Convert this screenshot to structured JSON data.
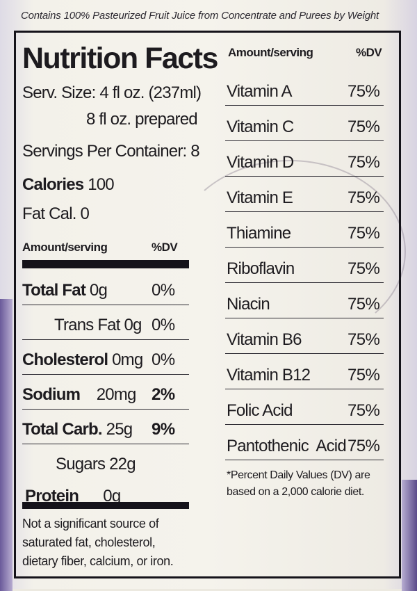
{
  "header": "Contains 100% Pasteurized Fruit Juice from Concentrate and Purees by Weight",
  "title": "Nutrition Facts",
  "serving": {
    "size_line1": "Serv. Size: 4 fl oz. (237ml)",
    "size_line2": "8 fl oz. prepared",
    "per_container": "Servings Per Container: 8",
    "calories_label": "Calories",
    "calories_value": "100",
    "fat_cal": "Fat Cal. 0"
  },
  "left_table": {
    "col_amount": "Amount/serving",
    "col_dv": "%DV",
    "rows": [
      {
        "name": "Total Fat",
        "amount": "0g",
        "dv": "0%"
      },
      {
        "name": "Trans Fat",
        "amount": "0g",
        "dv": "0%"
      },
      {
        "name": "Cholesterol",
        "amount": "0mg",
        "dv": "0%"
      },
      {
        "name": "Sodium",
        "amount": "20mg",
        "dv": "2%"
      },
      {
        "name": "Total Carb.",
        "amount": "25g",
        "dv": "9%"
      },
      {
        "name": "Sugars",
        "amount": "22g",
        "dv": ""
      },
      {
        "name": "Protein",
        "amount": "0g",
        "dv": ""
      }
    ]
  },
  "bottom_note": "Not a significant source of saturated fat, cholesterol, dietary fiber, calcium, or iron.",
  "right_table": {
    "col_amount": "Amount/serving",
    "col_dv": "%DV",
    "rows": [
      {
        "name": "Vitamin A",
        "dv": "75%"
      },
      {
        "name": "Vitamin C",
        "dv": "75%"
      },
      {
        "name": "Vitamin D",
        "dv": "75%"
      },
      {
        "name": "Vitamin E",
        "dv": "75%"
      },
      {
        "name": "Thiamine",
        "dv": "75%"
      },
      {
        "name": "Riboflavin",
        "dv": "75%"
      },
      {
        "name": "Niacin",
        "dv": "75%"
      },
      {
        "name": "Vitamin B6",
        "dv": "75%"
      },
      {
        "name": "Vitamin B12",
        "dv": "75%"
      },
      {
        "name": "Folic Acid",
        "dv": "75%"
      },
      {
        "name": "Pantothenic  Acid",
        "dv": "75%"
      }
    ]
  },
  "footnote": "*Percent Daily Values (DV) are based on a 2,000 calorie diet."
}
